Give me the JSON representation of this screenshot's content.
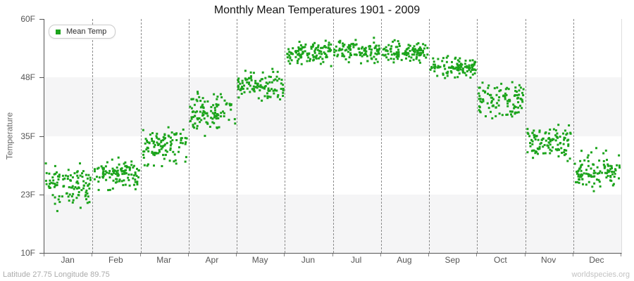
{
  "page": {
    "footer_left": "Latitude 27.75 Longitude 89.75",
    "footer_right": "worldspecies.org"
  },
  "chart_data": {
    "type": "scatter",
    "title": "Monthly Mean Temperatures 1901 - 2009",
    "ylabel": "Temperature",
    "xlabel": "",
    "legend_position": "top-left",
    "x_categories": [
      "Jan",
      "Feb",
      "Mar",
      "Apr",
      "May",
      "Jun",
      "Jul",
      "Aug",
      "Sep",
      "Oct",
      "Nov",
      "Dec"
    ],
    "y_ticks": [
      {
        "label": "10F",
        "value": 10
      },
      {
        "label": "23F",
        "value": 23
      },
      {
        "label": "35F",
        "value": 35
      },
      {
        "label": "48F",
        "value": 48
      },
      {
        "label": "60F",
        "value": 60
      }
    ],
    "ylim": [
      10,
      60
    ],
    "grid": {
      "vertical_dashed": true,
      "horizontal_alternating_bands": true
    },
    "years_range": "1901 - 2009",
    "points_per_month": 109,
    "series": [
      {
        "name": "Mean Temp",
        "unit": "F",
        "monthly_stats": [
          {
            "month": "Jan",
            "mean": 25.4,
            "sd": 1.9,
            "min": 19.0,
            "max": 29.6
          },
          {
            "month": "Feb",
            "mean": 27.4,
            "sd": 1.6,
            "min": 23.6,
            "max": 31.4
          },
          {
            "month": "Mar",
            "mean": 32.9,
            "sd": 1.9,
            "min": 28.6,
            "max": 37.7
          },
          {
            "month": "Apr",
            "mean": 40.2,
            "sd": 1.9,
            "min": 34.8,
            "max": 45.2
          },
          {
            "month": "May",
            "mean": 46.2,
            "sd": 1.5,
            "min": 42.8,
            "max": 50.0
          },
          {
            "month": "Jun",
            "mean": 53.0,
            "sd": 1.2,
            "min": 50.3,
            "max": 56.4
          },
          {
            "month": "Jul",
            "mean": 53.5,
            "sd": 1.1,
            "min": 50.9,
            "max": 56.5
          },
          {
            "month": "Aug",
            "mean": 53.2,
            "sd": 1.0,
            "min": 50.8,
            "max": 56.0
          },
          {
            "month": "Sep",
            "mean": 49.9,
            "sd": 1.1,
            "min": 47.6,
            "max": 52.6
          },
          {
            "month": "Oct",
            "mean": 43.1,
            "sd": 1.8,
            "min": 38.9,
            "max": 47.2
          },
          {
            "month": "Nov",
            "mean": 33.9,
            "sd": 1.8,
            "min": 29.8,
            "max": 38.0
          },
          {
            "month": "Dec",
            "mean": 27.9,
            "sd": 1.9,
            "min": 23.4,
            "max": 32.9
          }
        ],
        "outliers": [
          {
            "month": "Jan",
            "value": 19.3
          }
        ]
      }
    ],
    "style": {
      "marker_color": "#1CA41C",
      "marker_size": 3,
      "band_color": "#f5f5f6",
      "gridline_color": "#8c8c8c",
      "background": "#ffffff"
    }
  }
}
